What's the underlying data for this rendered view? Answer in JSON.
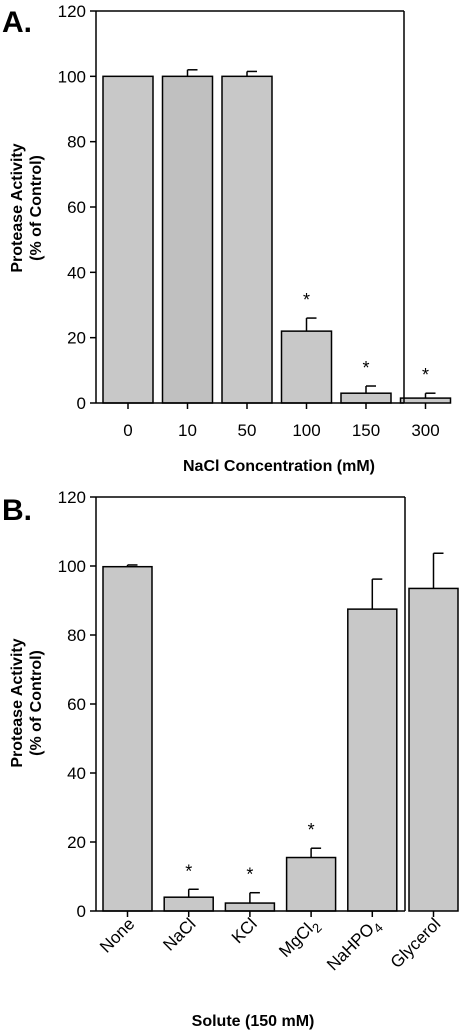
{
  "chart_data": [
    {
      "type": "bar",
      "panel_label": "A.",
      "categories": [
        "0",
        "10",
        "50",
        "100",
        "150",
        "300"
      ],
      "values": [
        100,
        100,
        100,
        22,
        3,
        1.5
      ],
      "errors": [
        0,
        2,
        1.5,
        4,
        2.2,
        1.5
      ],
      "significant": [
        false,
        false,
        false,
        true,
        true,
        true
      ],
      "ylabel_line1": "Protease Activity",
      "ylabel_line2": "(% of Control)",
      "xlabel": "NaCl Concentration (mM)",
      "ylim": [
        0,
        120
      ],
      "yticks": [
        "0",
        "20",
        "40",
        "60",
        "80",
        "100",
        "120"
      ],
      "bar_colors": [
        "#c8c8c8",
        "#c0c0c0",
        "#c8c8c8",
        "#c8c8c8",
        "#c8c8c8",
        "#c8c8c8"
      ],
      "grid": false
    },
    {
      "type": "bar",
      "panel_label": "B.",
      "categories": [
        "None",
        "NaCl",
        "KCl",
        "MgCl2",
        "NaHPO4",
        "Glycerol"
      ],
      "values": [
        99.8,
        4,
        2.3,
        15.5,
        87.5,
        93.5
      ],
      "errors": [
        0.5,
        2.3,
        3,
        2.7,
        8.7,
        10.2
      ],
      "significant": [
        false,
        true,
        true,
        true,
        false,
        false
      ],
      "ylabel_line1": "Protease Activity",
      "ylabel_line2": "(% of Control)",
      "xlabel": "Solute  (150 mM)",
      "ylim": [
        0,
        120
      ],
      "yticks": [
        "0",
        "20",
        "40",
        "60",
        "80",
        "100",
        "120"
      ],
      "bar_colors": [
        "#c8c8c8",
        "#c8c8c8",
        "#c8c8c8",
        "#c8c8c8",
        "#c8c8c8",
        "#c8c8c8"
      ],
      "grid": false
    }
  ],
  "colors": {
    "bar_stroke": "#000000",
    "axis": "#000000"
  }
}
